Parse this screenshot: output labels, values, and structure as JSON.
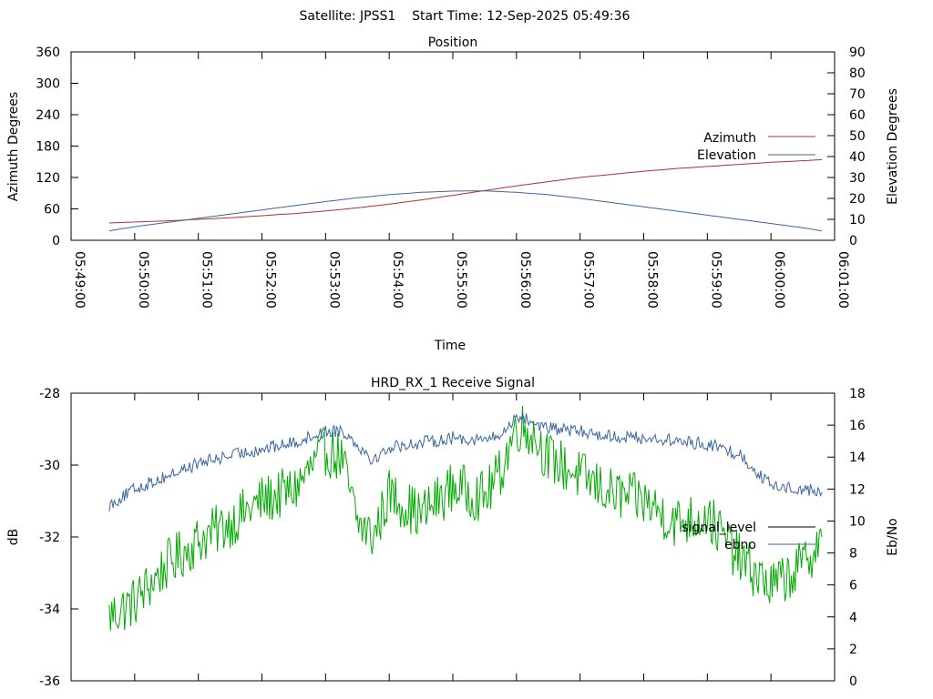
{
  "header": {
    "title": "Satellite: JPSS1    Start Time: 12-Sep-2025 05:49:36"
  },
  "chart_data": [
    {
      "type": "line",
      "title": "Position",
      "xlabel": "Time",
      "ylabel": "Azimuth Degrees",
      "y2label": "Elevation Degrees",
      "x_ticks": [
        "05:49:00",
        "05:50:00",
        "05:51:00",
        "05:52:00",
        "05:53:00",
        "05:54:00",
        "05:55:00",
        "05:56:00",
        "05:57:00",
        "05:58:00",
        "05:59:00",
        "06:00:00",
        "06:01:00"
      ],
      "xlim": [
        "05:49:00",
        "06:01:00"
      ],
      "ylim": [
        0,
        360
      ],
      "y2lim": [
        0,
        90
      ],
      "y_ticks": [
        0,
        60,
        120,
        180,
        240,
        300,
        360
      ],
      "y2_ticks": [
        0,
        10,
        20,
        30,
        40,
        50,
        60,
        70,
        80,
        90
      ],
      "legend_position": "right",
      "series": [
        {
          "name": "Azimuth",
          "axis": "left",
          "color": "#b0303a",
          "x": [
            "05:49:36",
            "05:50:00",
            "05:50:30",
            "05:51:00",
            "05:51:30",
            "05:52:00",
            "05:52:30",
            "05:53:00",
            "05:53:30",
            "05:54:00",
            "05:54:30",
            "05:55:00",
            "05:55:30",
            "05:56:00",
            "05:56:30",
            "05:57:00",
            "05:57:30",
            "05:58:00",
            "05:58:30",
            "05:59:00",
            "05:59:30",
            "06:00:00",
            "06:00:30",
            "06:00:48"
          ],
          "values": [
            33,
            35,
            37,
            40,
            43,
            47,
            51,
            56,
            62,
            69,
            77,
            86,
            95,
            104,
            112,
            120,
            126,
            132,
            137,
            141,
            145,
            149,
            152,
            154
          ]
        },
        {
          "name": "Elevation",
          "axis": "right",
          "color": "#3a66a0",
          "x": [
            "05:49:36",
            "05:50:00",
            "05:50:30",
            "05:51:00",
            "05:51:30",
            "05:52:00",
            "05:52:30",
            "05:53:00",
            "05:53:30",
            "05:54:00",
            "05:54:30",
            "05:55:00",
            "05:55:30",
            "05:56:00",
            "05:56:30",
            "05:57:00",
            "05:57:30",
            "05:58:00",
            "05:58:30",
            "05:59:00",
            "05:59:30",
            "06:00:00",
            "06:00:30",
            "06:00:48"
          ],
          "values": [
            4.5,
            6.5,
            8.5,
            10.5,
            12.5,
            14.5,
            16.5,
            18.5,
            20.3,
            21.8,
            22.9,
            23.5,
            23.6,
            22.9,
            21.8,
            20.0,
            18.0,
            16.0,
            14.0,
            12.0,
            10.0,
            8.0,
            6.0,
            4.5
          ]
        }
      ]
    },
    {
      "type": "line",
      "title": "HRD_RX_1 Receive Signal",
      "xlabel": "",
      "ylabel": "dB",
      "y2label": "Eb/No",
      "xlim": [
        "05:49:00",
        "06:01:00"
      ],
      "ylim": [
        -36,
        -28
      ],
      "y2lim": [
        0,
        18
      ],
      "y_ticks": [
        -36,
        -34,
        -32,
        -30,
        -28
      ],
      "y2_ticks": [
        0,
        2,
        4,
        6,
        8,
        10,
        12,
        14,
        16,
        18
      ],
      "legend_position": "right",
      "series": [
        {
          "name": "signal_level",
          "axis": "left",
          "color": "#000000",
          "legend_color": "#000000",
          "line_color": "#00aa00",
          "x": [
            "05:49:36",
            "05:50:00",
            "05:50:30",
            "05:51:00",
            "05:51:30",
            "05:52:00",
            "05:52:30",
            "05:53:00",
            "05:53:15",
            "05:53:30",
            "05:53:45",
            "05:54:00",
            "05:54:30",
            "05:55:00",
            "05:55:30",
            "05:55:45",
            "05:56:00",
            "05:56:15",
            "05:56:30",
            "05:57:00",
            "05:57:30",
            "05:58:00",
            "05:58:30",
            "05:59:00",
            "05:59:30",
            "06:00:00",
            "06:00:30",
            "06:00:48"
          ],
          "values": [
            -34.2,
            -33.8,
            -32.8,
            -32.1,
            -31.6,
            -31.0,
            -30.7,
            -29.6,
            -29.8,
            -31.6,
            -32.0,
            -30.8,
            -31.4,
            -30.6,
            -30.9,
            -30.2,
            -28.9,
            -29.1,
            -29.8,
            -30.3,
            -30.8,
            -31.0,
            -31.6,
            -31.4,
            -32.6,
            -33.4,
            -32.8,
            -32.0
          ]
        },
        {
          "name": "ebno",
          "axis": "right",
          "color": "#3a66a0",
          "x": [
            "05:49:36",
            "05:50:00",
            "05:50:30",
            "05:51:00",
            "05:51:30",
            "05:52:00",
            "05:52:30",
            "05:53:00",
            "05:53:15",
            "05:53:30",
            "05:53:45",
            "05:54:00",
            "05:54:30",
            "05:55:00",
            "05:55:30",
            "05:55:45",
            "05:56:00",
            "05:56:15",
            "05:56:30",
            "05:57:00",
            "05:57:30",
            "05:58:00",
            "05:58:30",
            "05:59:00",
            "05:59:30",
            "06:00:00",
            "06:00:30",
            "06:00:48"
          ],
          "values": [
            11.0,
            12.0,
            12.8,
            13.6,
            14.1,
            14.5,
            14.9,
            15.6,
            15.7,
            14.8,
            13.8,
            14.6,
            14.9,
            15.2,
            15.1,
            15.3,
            16.6,
            16.2,
            15.8,
            15.6,
            15.3,
            15.2,
            15.0,
            14.8,
            14.2,
            12.2,
            12.0,
            11.8
          ]
        }
      ]
    }
  ]
}
